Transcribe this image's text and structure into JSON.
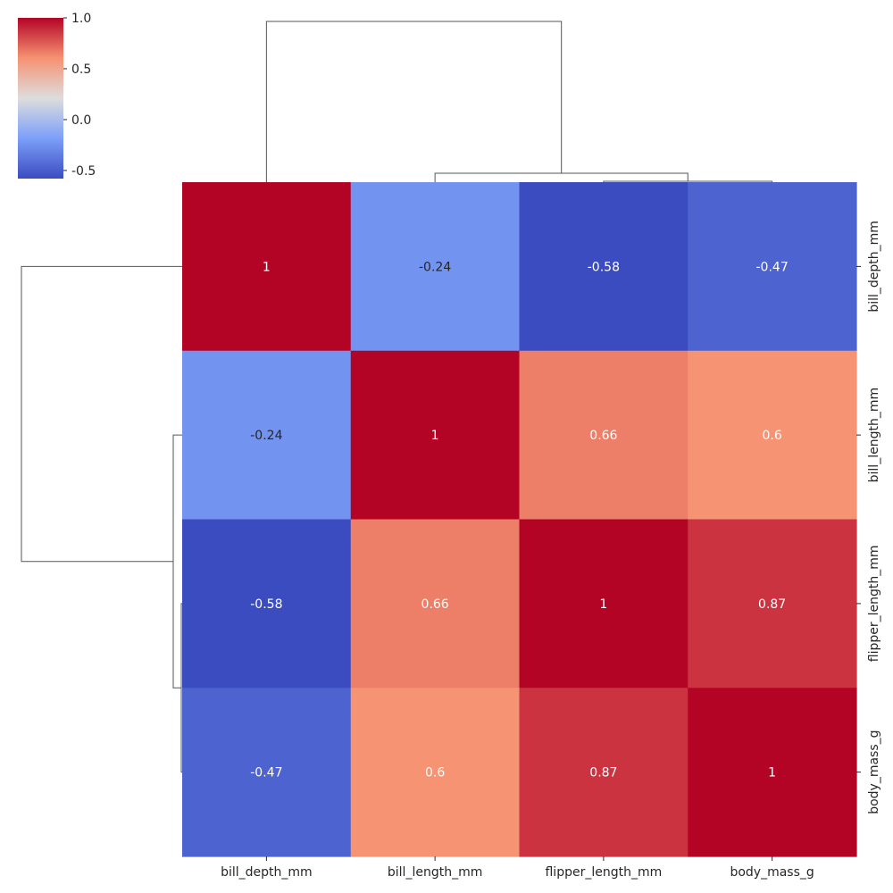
{
  "chart_data": {
    "type": "heatmap",
    "subtype": "clustermap",
    "colormap": "coolwarm",
    "columns": [
      "bill_depth_mm",
      "bill_length_mm",
      "flipper_length_mm",
      "body_mass_g"
    ],
    "rows": [
      "bill_depth_mm",
      "bill_length_mm",
      "flipper_length_mm",
      "body_mass_g"
    ],
    "values": [
      [
        1,
        -0.24,
        -0.58,
        -0.47
      ],
      [
        -0.24,
        1,
        0.66,
        0.6
      ],
      [
        -0.58,
        0.66,
        1,
        0.87
      ],
      [
        -0.47,
        0.6,
        0.87,
        1
      ]
    ],
    "annotations": [
      [
        "1",
        "-0.24",
        "-0.58",
        "-0.47"
      ],
      [
        "-0.24",
        "1",
        "0.66",
        "0.6"
      ],
      [
        "-0.58",
        "0.66",
        "1",
        "0.87"
      ],
      [
        "-0.47",
        "0.6",
        "0.87",
        "1"
      ]
    ],
    "colorbar": {
      "range": [
        -0.58,
        1.0
      ],
      "ticks": [
        1.0,
        0.5,
        0.0,
        -0.5
      ],
      "tick_labels": [
        "1.0",
        "0.5",
        "0.0",
        "-0.5"
      ]
    },
    "column_dendrogram": true,
    "row_dendrogram": true,
    "grid": false,
    "legend": "top-left"
  }
}
